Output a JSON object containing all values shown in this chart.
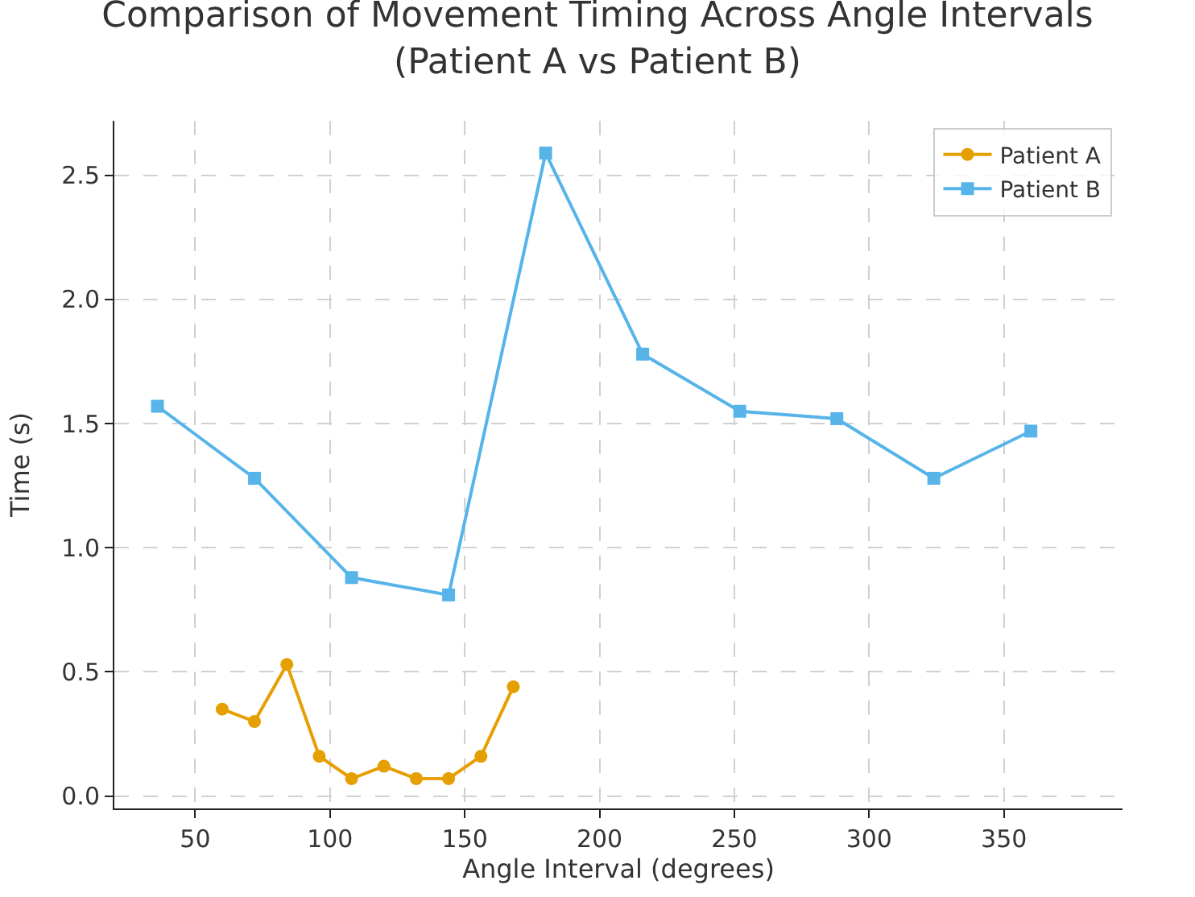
{
  "chart_data": {
    "type": "line",
    "title": "Comparison of Movement Timing Across Angle Intervals\n(Patient A vs Patient B)",
    "xlabel": "Angle Interval (degrees)",
    "ylabel": "Time (s)",
    "series": [
      {
        "name": "Patient A",
        "color": "#e69f00",
        "marker": "circle",
        "x": [
          60,
          72,
          84,
          96,
          108,
          120,
          132,
          144,
          156,
          168
        ],
        "values": [
          0.35,
          0.3,
          0.53,
          0.16,
          0.07,
          0.12,
          0.07,
          0.07,
          0.16,
          0.44
        ]
      },
      {
        "name": "Patient B",
        "color": "#56b4e9",
        "marker": "square",
        "x": [
          36,
          72,
          108,
          144,
          180,
          216,
          252,
          288,
          324,
          360
        ],
        "values": [
          1.57,
          1.28,
          0.88,
          0.81,
          2.59,
          1.78,
          1.55,
          1.52,
          1.28,
          1.47
        ]
      }
    ],
    "xlim": [
      20,
      394
    ],
    "xticks": [
      50,
      100,
      150,
      200,
      250,
      300,
      350
    ],
    "ylim": [
      -0.05,
      2.72
    ],
    "yticks": [
      {
        "value": 0,
        "label": "0.0"
      },
      {
        "value": 0.5,
        "label": "0.5"
      },
      {
        "value": 1,
        "label": "1.0"
      },
      {
        "value": 1.5,
        "label": "1.5"
      },
      {
        "value": 2,
        "label": "2.0"
      },
      {
        "value": 2.5,
        "label": "2.5"
      }
    ],
    "grid": true,
    "legend": "top right",
    "line_style": "solid"
  }
}
